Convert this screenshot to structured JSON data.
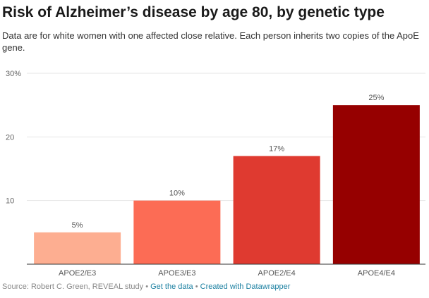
{
  "header": {
    "title": "Risk of Alzheimer’s disease by age 80, by genetic type",
    "subtitle": "Data are for white women with one affected close relative. Each person inherits two copies of the ApoE gene."
  },
  "chart_data": {
    "type": "bar",
    "title": "Risk of Alzheimer’s disease by age 80, by genetic type",
    "subtitle": "Data are for white women with one affected close relative. Each person inherits two copies of the ApoE gene.",
    "categories": [
      "APOE2/E3",
      "APOE3/E3",
      "APOE2/E4",
      "APOE4/E4"
    ],
    "values": [
      5,
      10,
      17,
      25
    ],
    "value_labels": [
      "5%",
      "10%",
      "17%",
      "25%"
    ],
    "colors": [
      "#fdae91",
      "#fc6c55",
      "#df3a30",
      "#960000"
    ],
    "xlabel": "",
    "ylabel": "",
    "ylim": [
      0,
      30
    ],
    "yticks": [
      10,
      20,
      30
    ],
    "ytick_labels": [
      "10",
      "20",
      "30%"
    ],
    "grid": true,
    "legend": "none"
  },
  "footer": {
    "source": "Source: Robert C. Green, REVEAL study",
    "separator": "•",
    "get_data_label": "Get the data",
    "created_with_label": "Created with Datawrapper"
  }
}
